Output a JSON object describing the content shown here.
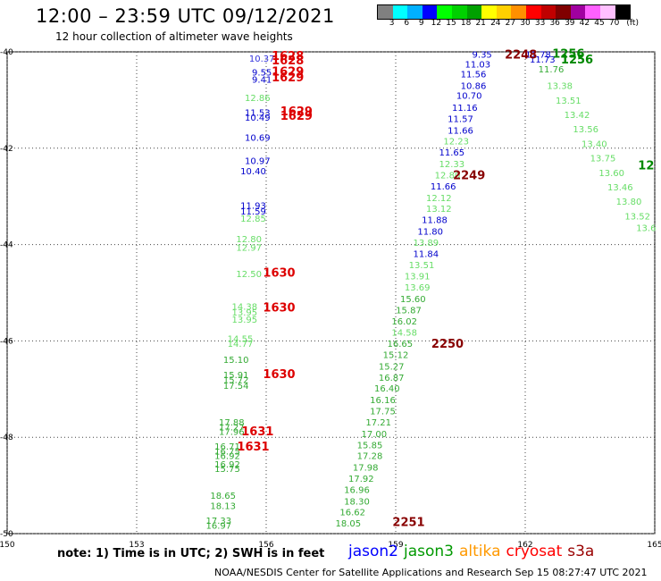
{
  "header": {
    "title": "12:00 – 23:59 UTC 09/12/2021",
    "subtitle": "12 hour collection of altimeter wave heights"
  },
  "colorbar": {
    "unit": "(ft)",
    "ticks": [
      "3",
      "6",
      "9",
      "12",
      "15",
      "18",
      "21",
      "24",
      "27",
      "30",
      "33",
      "36",
      "39",
      "42",
      "45",
      "70"
    ],
    "colors": [
      "#808080",
      "#00ffff",
      "#00b0ff",
      "#0000ff",
      "#00ff00",
      "#00d000",
      "#00a000",
      "#ffff00",
      "#ffd000",
      "#ff9000",
      "#ff0000",
      "#c00000",
      "#800000",
      "#a000a0",
      "#ff60ff",
      "#ffc0ff",
      "#000000"
    ]
  },
  "satellites": [
    {
      "name": "jason2",
      "color": "#0000ff"
    },
    {
      "name": "jason3",
      "color": "#009900"
    },
    {
      "name": "altika",
      "color": "#ff9900"
    },
    {
      "name": "cryosat",
      "color": "#ff0000"
    },
    {
      "name": "s3a",
      "color": "#990000"
    }
  ],
  "note": "note: 1) Time is in UTC; 2) SWH is in feet",
  "credit": "NOAA/NESDIS Center for Satellite Applications and Research   Sep 15 08:27:47 UTC 2021",
  "chart_data": {
    "type": "scatter",
    "x_ticks": [
      "150",
      "153",
      "156",
      "159",
      "162",
      "165"
    ],
    "y_ticks": [
      "-40",
      "-42",
      "-44",
      "-46",
      "-48",
      "-50"
    ],
    "xlim": [
      150,
      165
    ],
    "ylim": [
      -50,
      -40
    ],
    "grid": "dotted",
    "points": [
      {
        "x": 155.9,
        "y": -40.13,
        "v": "10.37",
        "c": "#3333dd"
      },
      {
        "x": 155.9,
        "y": -40.42,
        "v": "9.55",
        "c": "#0000cc"
      },
      {
        "x": 155.9,
        "y": -40.57,
        "v": "9.41",
        "c": "#0000cc"
      },
      {
        "x": 155.8,
        "y": -40.95,
        "v": "12.86",
        "c": "#66dd66"
      },
      {
        "x": 155.8,
        "y": -41.25,
        "v": "11.53",
        "c": "#0000cc"
      },
      {
        "x": 155.8,
        "y": -41.35,
        "v": "10.49",
        "c": "#0000cc"
      },
      {
        "x": 155.8,
        "y": -41.77,
        "v": "10.69",
        "c": "#0000cc"
      },
      {
        "x": 155.8,
        "y": -42.25,
        "v": "10.97",
        "c": "#0000cc"
      },
      {
        "x": 155.7,
        "y": -42.47,
        "v": "10.40",
        "c": "#0000cc"
      },
      {
        "x": 155.7,
        "y": -43.18,
        "v": "11.93",
        "c": "#0000cc"
      },
      {
        "x": 155.7,
        "y": -43.3,
        "v": "11.59",
        "c": "#0000cc"
      },
      {
        "x": 155.7,
        "y": -43.45,
        "v": "12.85",
        "c": "#66dd66"
      },
      {
        "x": 155.6,
        "y": -43.88,
        "v": "12.80",
        "c": "#66dd66"
      },
      {
        "x": 155.6,
        "y": -44.05,
        "v": "12.97",
        "c": "#66dd66"
      },
      {
        "x": 155.6,
        "y": -44.6,
        "v": "12.50",
        "c": "#66dd66"
      },
      {
        "x": 155.5,
        "y": -45.28,
        "v": "14.38",
        "c": "#66dd66"
      },
      {
        "x": 155.5,
        "y": -45.4,
        "v": "13.95",
        "c": "#66dd66"
      },
      {
        "x": 155.5,
        "y": -45.55,
        "v": "13.95",
        "c": "#66dd66"
      },
      {
        "x": 155.4,
        "y": -45.95,
        "v": "14.55",
        "c": "#66dd66"
      },
      {
        "x": 155.4,
        "y": -46.05,
        "v": "14.77",
        "c": "#66dd66"
      },
      {
        "x": 155.3,
        "y": -46.38,
        "v": "15.10",
        "c": "#33aa33"
      },
      {
        "x": 155.3,
        "y": -46.7,
        "v": "15.91",
        "c": "#33aa33"
      },
      {
        "x": 155.3,
        "y": -46.8,
        "v": "15.72",
        "c": "#33aa33"
      },
      {
        "x": 155.3,
        "y": -46.92,
        "v": "17.54",
        "c": "#33aa33"
      },
      {
        "x": 155.2,
        "y": -47.68,
        "v": "17.88",
        "c": "#33aa33"
      },
      {
        "x": 155.2,
        "y": -47.78,
        "v": "17.27",
        "c": "#33aa33"
      },
      {
        "x": 155.2,
        "y": -47.88,
        "v": "17.96",
        "c": "#33aa33"
      },
      {
        "x": 155.1,
        "y": -48.18,
        "v": "16.71",
        "c": "#33aa33"
      },
      {
        "x": 155.1,
        "y": -48.28,
        "v": "16.75",
        "c": "#33aa33"
      },
      {
        "x": 155.1,
        "y": -48.38,
        "v": "16.92",
        "c": "#33aa33"
      },
      {
        "x": 155.1,
        "y": -48.55,
        "v": "16.92",
        "c": "#33aa33"
      },
      {
        "x": 155.1,
        "y": -48.65,
        "v": "15.75",
        "c": "#33aa33"
      },
      {
        "x": 155.0,
        "y": -49.2,
        "v": "18.65",
        "c": "#33aa33"
      },
      {
        "x": 155.0,
        "y": -49.42,
        "v": "18.13",
        "c": "#33aa33"
      },
      {
        "x": 154.9,
        "y": -49.72,
        "v": "17.33",
        "c": "#33aa33"
      },
      {
        "x": 154.9,
        "y": -49.82,
        "v": "16.97",
        "c": "#33aa33"
      },
      {
        "x": 161.0,
        "y": -40.05,
        "v": "9.35",
        "c": "#0000cc"
      },
      {
        "x": 160.9,
        "y": -40.25,
        "v": "11.03",
        "c": "#0000cc"
      },
      {
        "x": 160.8,
        "y": -40.45,
        "v": "11.56",
        "c": "#0000cc"
      },
      {
        "x": 160.8,
        "y": -40.7,
        "v": "10.86",
        "c": "#0000cc"
      },
      {
        "x": 160.7,
        "y": -40.9,
        "v": "10.70",
        "c": "#0000cc"
      },
      {
        "x": 160.6,
        "y": -41.15,
        "v": "11.16",
        "c": "#0000cc"
      },
      {
        "x": 160.5,
        "y": -41.38,
        "v": "11.57",
        "c": "#0000cc"
      },
      {
        "x": 160.5,
        "y": -41.62,
        "v": "11.66",
        "c": "#0000cc"
      },
      {
        "x": 160.4,
        "y": -41.85,
        "v": "12.23",
        "c": "#66dd66"
      },
      {
        "x": 160.3,
        "y": -42.08,
        "v": "11.65",
        "c": "#0000cc"
      },
      {
        "x": 160.3,
        "y": -42.32,
        "v": "12.33",
        "c": "#66dd66"
      },
      {
        "x": 160.2,
        "y": -42.55,
        "v": "12.80",
        "c": "#66dd66"
      },
      {
        "x": 160.1,
        "y": -42.78,
        "v": "11.66",
        "c": "#0000cc"
      },
      {
        "x": 160.0,
        "y": -43.02,
        "v": "12.12",
        "c": "#66dd66"
      },
      {
        "x": 160.0,
        "y": -43.25,
        "v": "13.12",
        "c": "#66dd66"
      },
      {
        "x": 159.9,
        "y": -43.48,
        "v": "11.88",
        "c": "#0000cc"
      },
      {
        "x": 159.8,
        "y": -43.72,
        "v": "11.80",
        "c": "#0000cc"
      },
      {
        "x": 159.7,
        "y": -43.95,
        "v": "13.89",
        "c": "#66dd66"
      },
      {
        "x": 159.7,
        "y": -44.18,
        "v": "11.84",
        "c": "#0000cc"
      },
      {
        "x": 159.6,
        "y": -44.42,
        "v": "13.51",
        "c": "#66dd66"
      },
      {
        "x": 159.5,
        "y": -44.65,
        "v": "13.91",
        "c": "#66dd66"
      },
      {
        "x": 159.5,
        "y": -44.88,
        "v": "13.69",
        "c": "#66dd66"
      },
      {
        "x": 159.4,
        "y": -45.12,
        "v": "15.60",
        "c": "#33aa33"
      },
      {
        "x": 159.3,
        "y": -45.35,
        "v": "15.87",
        "c": "#33aa33"
      },
      {
        "x": 159.2,
        "y": -45.58,
        "v": "16.02",
        "c": "#33aa33"
      },
      {
        "x": 159.2,
        "y": -45.82,
        "v": "14.58",
        "c": "#66dd66"
      },
      {
        "x": 159.1,
        "y": -46.05,
        "v": "16.65",
        "c": "#33aa33"
      },
      {
        "x": 159.0,
        "y": -46.28,
        "v": "15.12",
        "c": "#33aa33"
      },
      {
        "x": 158.9,
        "y": -46.52,
        "v": "15.27",
        "c": "#33aa33"
      },
      {
        "x": 158.9,
        "y": -46.75,
        "v": "16.87",
        "c": "#33aa33"
      },
      {
        "x": 158.8,
        "y": -46.98,
        "v": "16.40",
        "c": "#33aa33"
      },
      {
        "x": 158.7,
        "y": -47.22,
        "v": "16.16",
        "c": "#33aa33"
      },
      {
        "x": 158.7,
        "y": -47.45,
        "v": "17.75",
        "c": "#33aa33"
      },
      {
        "x": 158.6,
        "y": -47.68,
        "v": "17.21",
        "c": "#33aa33"
      },
      {
        "x": 158.5,
        "y": -47.92,
        "v": "17.00",
        "c": "#33aa33"
      },
      {
        "x": 158.4,
        "y": -48.15,
        "v": "15.85",
        "c": "#33aa33"
      },
      {
        "x": 158.4,
        "y": -48.38,
        "v": "17.28",
        "c": "#33aa33"
      },
      {
        "x": 158.3,
        "y": -48.62,
        "v": "17.98",
        "c": "#33aa33"
      },
      {
        "x": 158.2,
        "y": -48.85,
        "v": "17.92",
        "c": "#33aa33"
      },
      {
        "x": 158.1,
        "y": -49.08,
        "v": "16.96",
        "c": "#33aa33"
      },
      {
        "x": 158.1,
        "y": -49.32,
        "v": "18.30",
        "c": "#33aa33"
      },
      {
        "x": 158.0,
        "y": -49.55,
        "v": "16.62",
        "c": "#33aa33"
      },
      {
        "x": 157.9,
        "y": -49.78,
        "v": "18.05",
        "c": "#33aa33"
      },
      {
        "x": 162.3,
        "y": -40.05,
        "v": "11.78",
        "c": "#0000cc"
      },
      {
        "x": 162.4,
        "y": -40.15,
        "v": "11.73",
        "c": "#0000cc"
      },
      {
        "x": 162.6,
        "y": -40.35,
        "v": "11.76",
        "c": "#33aa33"
      },
      {
        "x": 162.8,
        "y": -40.7,
        "v": "13.38",
        "c": "#66dd66"
      },
      {
        "x": 163.0,
        "y": -41.0,
        "v": "13.51",
        "c": "#66dd66"
      },
      {
        "x": 163.2,
        "y": -41.3,
        "v": "13.42",
        "c": "#66dd66"
      },
      {
        "x": 163.4,
        "y": -41.6,
        "v": "13.56",
        "c": "#66dd66"
      },
      {
        "x": 163.6,
        "y": -41.9,
        "v": "13.40",
        "c": "#66dd66"
      },
      {
        "x": 163.8,
        "y": -42.2,
        "v": "13.75",
        "c": "#66dd66"
      },
      {
        "x": 164.0,
        "y": -42.5,
        "v": "13.60",
        "c": "#66dd66"
      },
      {
        "x": 164.2,
        "y": -42.8,
        "v": "13.46",
        "c": "#66dd66"
      },
      {
        "x": 164.4,
        "y": -43.1,
        "v": "13.80",
        "c": "#66dd66"
      },
      {
        "x": 164.6,
        "y": -43.4,
        "v": "13.52",
        "c": "#66dd66"
      },
      {
        "x": 164.8,
        "y": -43.65,
        "v": "13.6",
        "c": "#66dd66"
      }
    ],
    "time_labels": [
      {
        "x": 156.5,
        "y": -40.07,
        "t": "1628",
        "c": "#dd0000"
      },
      {
        "x": 156.5,
        "y": -40.17,
        "t": "1628",
        "c": "#dd0000"
      },
      {
        "x": 156.5,
        "y": -40.4,
        "t": "1629",
        "c": "#dd0000"
      },
      {
        "x": 156.5,
        "y": -40.52,
        "t": "1629",
        "c": "#dd0000"
      },
      {
        "x": 156.7,
        "y": -41.22,
        "t": "1629",
        "c": "#dd0000"
      },
      {
        "x": 156.7,
        "y": -41.32,
        "t": "1629",
        "c": "#dd0000"
      },
      {
        "x": 156.3,
        "y": -44.57,
        "t": "1630",
        "c": "#dd0000"
      },
      {
        "x": 156.3,
        "y": -45.3,
        "t": "1630",
        "c": "#dd0000"
      },
      {
        "x": 156.3,
        "y": -46.68,
        "t": "1630",
        "c": "#dd0000"
      },
      {
        "x": 155.8,
        "y": -47.87,
        "t": "1631",
        "c": "#dd0000"
      },
      {
        "x": 155.7,
        "y": -48.18,
        "t": "1631",
        "c": "#dd0000"
      },
      {
        "x": 161.9,
        "y": -40.05,
        "t": "2248",
        "c": "#880000"
      },
      {
        "x": 160.7,
        "y": -42.55,
        "t": "2249",
        "c": "#880000"
      },
      {
        "x": 160.2,
        "y": -46.05,
        "t": "2250",
        "c": "#880000"
      },
      {
        "x": 159.3,
        "y": -49.75,
        "t": "2251",
        "c": "#880000"
      },
      {
        "x": 163.0,
        "y": -40.03,
        "t": "1256",
        "c": "#008800"
      },
      {
        "x": 163.2,
        "y": -40.15,
        "t": "1256",
        "c": "#008800"
      },
      {
        "x": 164.8,
        "y": -42.35,
        "t": "12",
        "c": "#008800"
      }
    ]
  }
}
